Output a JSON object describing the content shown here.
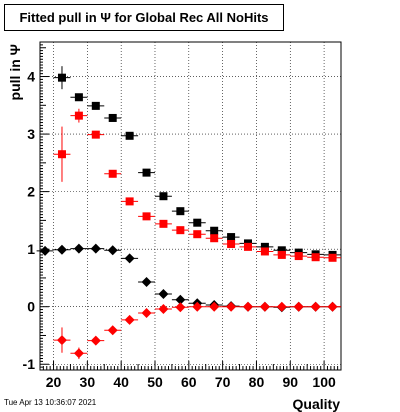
{
  "title": "Fitted pull in  Ψ  for Global Rec All NoHits",
  "timestamp": "Tue Apr 13 10:36:07 2021",
  "chart_data": {
    "type": "scatter",
    "xlabel": "Quality",
    "ylabel": "pull in  Ψ",
    "xlim": [
      16,
      105
    ],
    "ylim": [
      -1.1,
      4.6
    ],
    "xticks": [
      20,
      30,
      40,
      50,
      60,
      70,
      80,
      90,
      100
    ],
    "yticks": [
      -1,
      0,
      1,
      2,
      3,
      4
    ],
    "grid": true,
    "xerr": 2.5,
    "series": [
      {
        "marker": "square",
        "color": "#000000",
        "x": [
          22.5,
          27.5,
          32.5,
          37.5,
          42.5,
          47.5,
          52.5,
          57.5,
          62.5,
          67.5,
          72.5,
          77.5,
          82.5,
          87.5,
          92.5,
          97.5,
          102.5
        ],
        "y": [
          3.98,
          3.64,
          3.49,
          3.28,
          2.97,
          2.33,
          1.92,
          1.66,
          1.46,
          1.32,
          1.21,
          1.1,
          1.04,
          0.98,
          0.94,
          0.91,
          0.9
        ],
        "yerr": [
          0.2,
          0.05,
          0.03,
          0.03,
          0.02,
          0.02,
          0.02,
          0.01,
          0.01,
          0.01,
          0.01,
          0.01,
          0.01,
          0.01,
          0.01,
          0.01,
          0.01
        ]
      },
      {
        "marker": "square",
        "color": "#ff0000",
        "x": [
          22.5,
          27.5,
          32.5,
          37.5,
          42.5,
          47.5,
          52.5,
          57.5,
          62.5,
          67.5,
          72.5,
          77.5,
          82.5,
          87.5,
          92.5,
          97.5,
          102.5
        ],
        "y": [
          2.65,
          3.32,
          2.99,
          2.31,
          1.83,
          1.57,
          1.44,
          1.33,
          1.26,
          1.19,
          1.09,
          1.04,
          0.96,
          0.9,
          0.88,
          0.86,
          0.85
        ],
        "yerr": [
          0.48,
          0.12,
          0.04,
          0.03,
          0.02,
          0.02,
          0.02,
          0.02,
          0.01,
          0.01,
          0.01,
          0.01,
          0.01,
          0.01,
          0.01,
          0.01,
          0.01
        ]
      },
      {
        "marker": "diamond",
        "color": "#000000",
        "x": [
          17.5,
          22.5,
          27.5,
          32.5,
          37.5,
          42.5,
          47.5,
          52.5,
          57.5,
          62.5,
          67.5,
          72.5,
          77.5,
          82.5,
          87.5,
          92.5,
          97.5,
          102.5
        ],
        "y": [
          0.97,
          0.99,
          1.01,
          1.01,
          0.98,
          0.84,
          0.43,
          0.22,
          0.12,
          0.06,
          0.03,
          0.01,
          0.0,
          0.0,
          -0.01,
          0.0,
          0.0,
          0.0
        ],
        "yerr": [
          0.02,
          0.07,
          0.04,
          0.03,
          0.03,
          0.03,
          0.02,
          0.02,
          0.01,
          0.01,
          0.01,
          0.01,
          0.01,
          0.01,
          0.01,
          0.01,
          0.01,
          0.01
        ]
      },
      {
        "marker": "diamond",
        "color": "#ff0000",
        "x": [
          22.5,
          27.5,
          32.5,
          37.5,
          42.5,
          47.5,
          52.5,
          57.5,
          62.5,
          67.5,
          72.5,
          77.5,
          82.5,
          87.5,
          92.5,
          97.5,
          102.5
        ],
        "y": [
          -0.58,
          -0.81,
          -0.59,
          -0.41,
          -0.23,
          -0.11,
          -0.04,
          -0.01,
          0.0,
          0.0,
          0.0,
          0.0,
          0.0,
          0.0,
          0.0,
          0.0,
          0.0
        ],
        "yerr": [
          0.22,
          0.1,
          0.05,
          0.04,
          0.03,
          0.02,
          0.02,
          0.01,
          0.01,
          0.01,
          0.01,
          0.01,
          0.01,
          0.01,
          0.01,
          0.01,
          0.01
        ]
      }
    ]
  }
}
